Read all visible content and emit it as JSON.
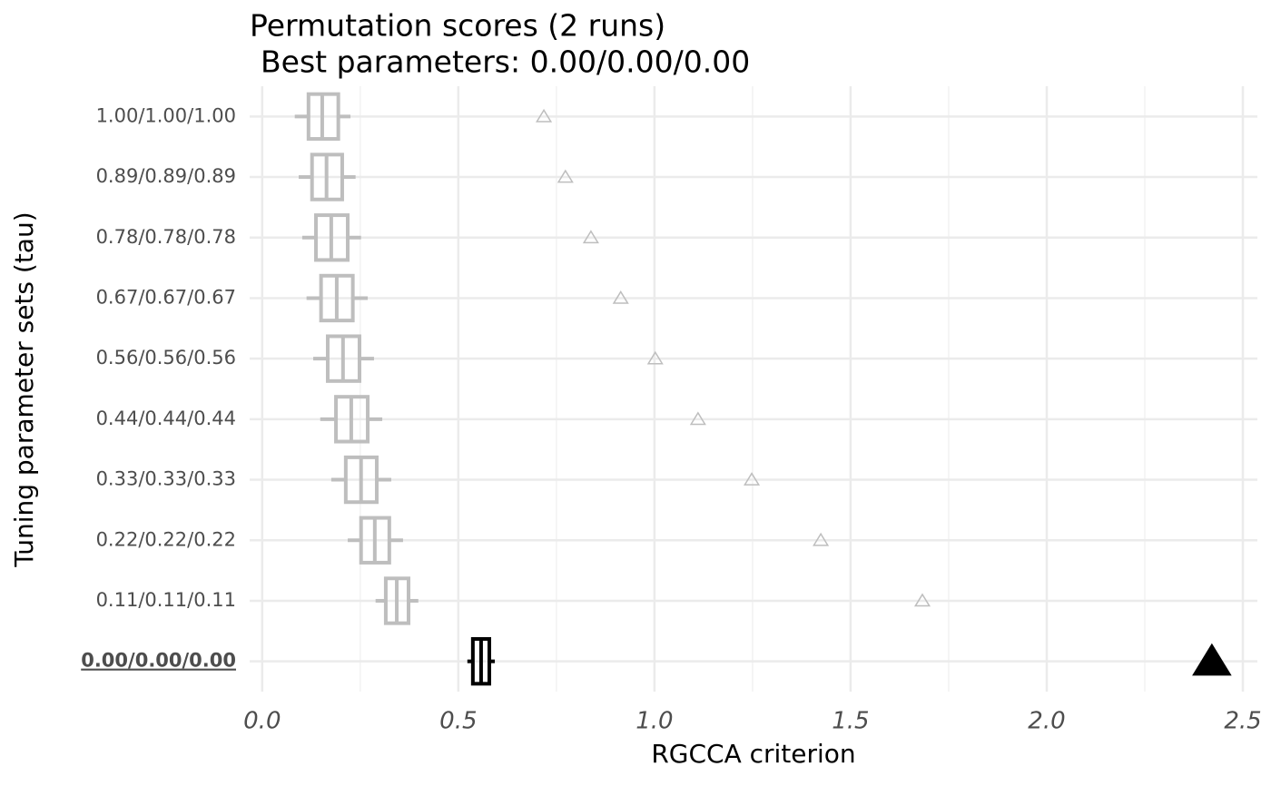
{
  "chart_data": {
    "type": "boxplot",
    "title": "Permutation scores (2 runs)",
    "subtitle": "Best parameters: 0.00/0.00/0.00",
    "x_label": "RGCCA criterion",
    "y_label": "Tuning parameter sets (tau)",
    "categories": [
      "1.00/1.00/1.00",
      "0.89/0.89/0.89",
      "0.78/0.78/0.78",
      "0.67/0.67/0.67",
      "0.56/0.56/0.56",
      "0.44/0.44/0.44",
      "0.33/0.33/0.33",
      "0.22/0.22/0.22",
      "0.11/0.11/0.11",
      "0.00/0.00/0.00"
    ],
    "whisker_low": [
      0.083,
      0.093,
      0.102,
      0.113,
      0.13,
      0.148,
      0.176,
      0.218,
      0.289,
      0.523
    ],
    "q1": [
      0.118,
      0.127,
      0.137,
      0.15,
      0.167,
      0.188,
      0.213,
      0.252,
      0.315,
      0.537
    ],
    "median": [
      0.153,
      0.164,
      0.176,
      0.19,
      0.206,
      0.227,
      0.252,
      0.287,
      0.343,
      0.558
    ],
    "q3": [
      0.194,
      0.204,
      0.218,
      0.231,
      0.248,
      0.269,
      0.292,
      0.324,
      0.373,
      0.579
    ],
    "whisker_high": [
      0.225,
      0.238,
      0.252,
      0.269,
      0.285,
      0.306,
      0.329,
      0.359,
      0.398,
      0.593
    ],
    "points": [
      0.718,
      0.773,
      0.838,
      0.914,
      1.002,
      1.111,
      1.248,
      1.424,
      1.683,
      2.421
    ],
    "colors": [
      "#bebebe",
      "#bebebe",
      "#bebebe",
      "#bebebe",
      "#bebebe",
      "#bebebe",
      "#bebebe",
      "#bebebe",
      "#bebebe",
      "#000000"
    ],
    "xlim": [
      -0.032,
      2.537
    ],
    "xticks": [
      {
        "value": 0,
        "label": "0.0"
      },
      0.5,
      {
        "value": 1,
        "label": "1.0"
      },
      1.5,
      {
        "value": 2,
        "label": "2.0"
      },
      2.5
    ],
    "xminor": [
      0.25,
      0.75,
      1.25,
      1.75,
      2.25
    ],
    "grid": true
  }
}
